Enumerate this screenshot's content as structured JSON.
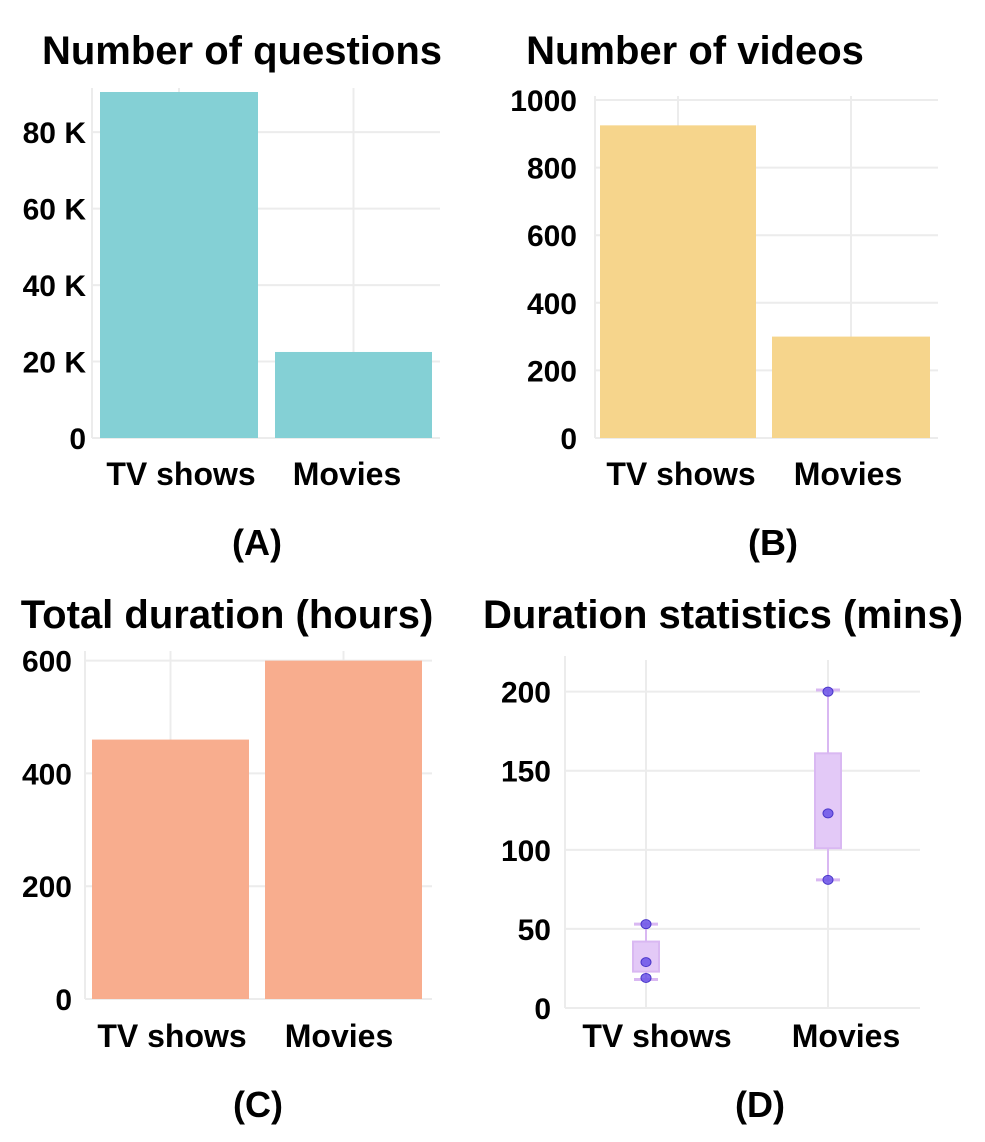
{
  "chart_data": [
    {
      "type": "bar",
      "title": "Number of questions",
      "panel_label": "(A)",
      "categories": [
        "TV shows",
        "Movies"
      ],
      "values": [
        90500,
        22500
      ],
      "ylim": [
        0,
        90500
      ],
      "yticks": [
        0,
        20000,
        40000,
        60000,
        80000
      ],
      "ytick_labels": [
        "0",
        "20 K",
        "40 K",
        "60 K",
        "80 K"
      ],
      "color": "#84d0d5"
    },
    {
      "type": "bar",
      "title": "Number of videos",
      "panel_label": "(B)",
      "categories": [
        "TV shows",
        "Movies"
      ],
      "values": [
        925,
        300
      ],
      "ylim": [
        0,
        1000
      ],
      "yticks": [
        0,
        200,
        400,
        600,
        800,
        1000
      ],
      "ytick_labels": [
        "0",
        "200",
        "400",
        "600",
        "800",
        "1000"
      ],
      "color": "#f6d58c"
    },
    {
      "type": "bar",
      "title": "Total duration (hours)",
      "panel_label": "(C)",
      "categories": [
        "TV shows",
        "Movies"
      ],
      "values": [
        460,
        600
      ],
      "ylim": [
        0,
        610
      ],
      "yticks": [
        0,
        200,
        400,
        600
      ],
      "ytick_labels": [
        "0",
        "200",
        "400",
        "600"
      ],
      "color": "#f8ad8e"
    },
    {
      "type": "box",
      "title": "Duration statistics (mins)",
      "panel_label": "(D)",
      "categories": [
        "TV shows",
        "Movies"
      ],
      "ylim": [
        0,
        220
      ],
      "yticks": [
        0,
        50,
        100,
        150,
        200
      ],
      "ytick_labels": [
        "0",
        "50",
        "100",
        "150",
        "200"
      ],
      "boxes": [
        {
          "min": 18,
          "q1": 23,
          "median": 28,
          "q3": 42,
          "max": 53,
          "points": [
            53,
            29,
            19
          ]
        },
        {
          "min": 81,
          "q1": 101,
          "median": 123,
          "q3": 161,
          "max": 201,
          "points": [
            200,
            123,
            81
          ]
        }
      ],
      "box_fill": "#e3c9f7",
      "box_stroke": "#d9b8f2",
      "point_color": "#6a52e8"
    }
  ]
}
